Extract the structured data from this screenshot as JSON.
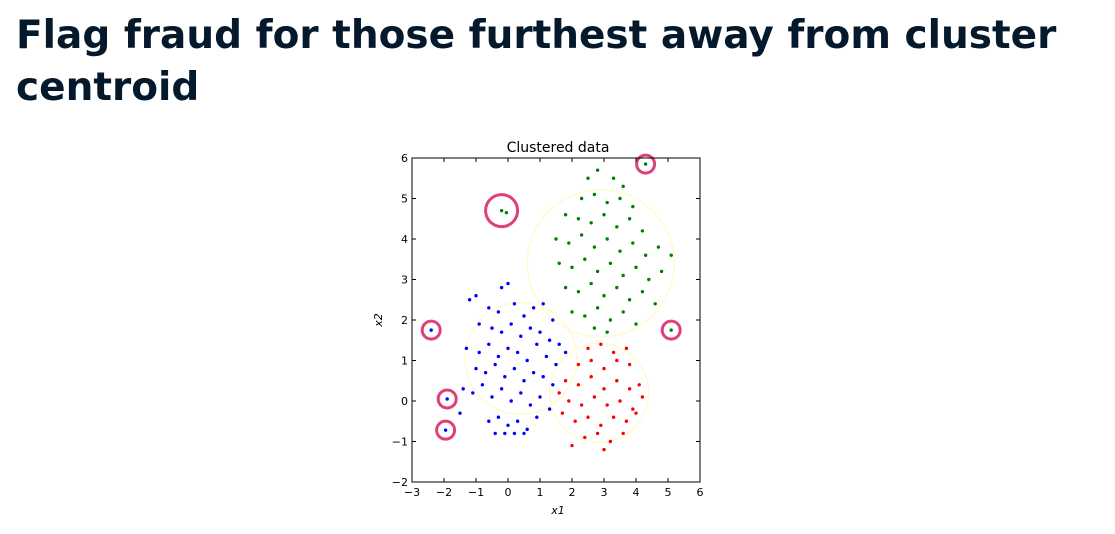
{
  "slide": {
    "title": "Flag fraud for those furthest away from cluster centroid"
  },
  "chart_data": {
    "type": "scatter",
    "title": "Clustered data",
    "xlabel": "x1",
    "ylabel": "x2",
    "xlim": [
      -3,
      6
    ],
    "ylim": [
      -2,
      6
    ],
    "xticks": [
      "−3",
      "−2",
      "−1",
      "0",
      "1",
      "2",
      "3",
      "4",
      "5",
      "6"
    ],
    "yticks": [
      "−2",
      "−1",
      "0",
      "1",
      "2",
      "3",
      "4",
      "5",
      "6"
    ],
    "grid": false,
    "colors": {
      "blue": "#0000ff",
      "green": "#008000",
      "red": "#ff0000",
      "cluster_boundary": "#fffacd",
      "outlier_highlight": "#e0407a"
    },
    "series": [
      {
        "color": "blue",
        "points": [
          [
            -1.2,
            2.5
          ],
          [
            -1.0,
            2.6
          ],
          [
            -0.6,
            2.3
          ],
          [
            -0.3,
            2.2
          ],
          [
            0.2,
            2.4
          ],
          [
            0.5,
            2.1
          ],
          [
            0.8,
            2.3
          ],
          [
            1.1,
            2.4
          ],
          [
            1.4,
            2.0
          ],
          [
            -0.9,
            1.9
          ],
          [
            -0.5,
            1.8
          ],
          [
            -0.2,
            1.7
          ],
          [
            0.1,
            1.9
          ],
          [
            0.4,
            1.6
          ],
          [
            0.7,
            1.8
          ],
          [
            1.0,
            1.7
          ],
          [
            1.3,
            1.5
          ],
          [
            1.6,
            1.4
          ],
          [
            -1.3,
            1.3
          ],
          [
            -0.9,
            1.2
          ],
          [
            -0.6,
            1.4
          ],
          [
            -0.3,
            1.1
          ],
          [
            0.0,
            1.3
          ],
          [
            0.3,
            1.2
          ],
          [
            0.6,
            1.0
          ],
          [
            0.9,
            1.4
          ],
          [
            1.2,
            1.1
          ],
          [
            1.5,
            0.9
          ],
          [
            1.8,
            1.2
          ],
          [
            -1.0,
            0.8
          ],
          [
            -0.7,
            0.7
          ],
          [
            -0.4,
            0.9
          ],
          [
            -0.1,
            0.6
          ],
          [
            0.2,
            0.8
          ],
          [
            0.5,
            0.5
          ],
          [
            0.8,
            0.7
          ],
          [
            1.1,
            0.6
          ],
          [
            1.4,
            0.4
          ],
          [
            -1.4,
            0.3
          ],
          [
            -1.1,
            0.2
          ],
          [
            -0.8,
            0.4
          ],
          [
            -0.5,
            0.1
          ],
          [
            -0.2,
            0.3
          ],
          [
            0.1,
            0.0
          ],
          [
            0.4,
            0.2
          ],
          [
            0.7,
            -0.1
          ],
          [
            1.0,
            0.1
          ],
          [
            1.3,
            -0.2
          ],
          [
            -0.6,
            -0.5
          ],
          [
            -0.3,
            -0.4
          ],
          [
            0.0,
            -0.6
          ],
          [
            0.3,
            -0.5
          ],
          [
            0.6,
            -0.7
          ],
          [
            0.9,
            -0.4
          ],
          [
            -0.4,
            -0.8
          ],
          [
            -0.1,
            -0.8
          ],
          [
            0.2,
            -0.8
          ],
          [
            0.5,
            -0.8
          ],
          [
            -1.5,
            -0.3
          ],
          [
            -0.2,
            2.8
          ],
          [
            0.0,
            2.9
          ],
          [
            -1.9,
            0.05
          ],
          [
            -1.95,
            -0.72
          ],
          [
            -2.4,
            1.75
          ]
        ]
      },
      {
        "color": "green",
        "points": [
          [
            2.5,
            5.5
          ],
          [
            2.8,
            5.7
          ],
          [
            3.3,
            5.5
          ],
          [
            3.6,
            5.3
          ],
          [
            2.3,
            5.0
          ],
          [
            2.7,
            5.1
          ],
          [
            3.1,
            4.9
          ],
          [
            3.5,
            5.0
          ],
          [
            3.9,
            4.8
          ],
          [
            1.8,
            4.6
          ],
          [
            2.2,
            4.5
          ],
          [
            2.6,
            4.4
          ],
          [
            3.0,
            4.6
          ],
          [
            3.4,
            4.3
          ],
          [
            3.8,
            4.5
          ],
          [
            4.2,
            4.2
          ],
          [
            1.5,
            4.0
          ],
          [
            1.9,
            3.9
          ],
          [
            2.3,
            4.1
          ],
          [
            2.7,
            3.8
          ],
          [
            3.1,
            4.0
          ],
          [
            3.5,
            3.7
          ],
          [
            3.9,
            3.9
          ],
          [
            4.3,
            3.6
          ],
          [
            4.7,
            3.8
          ],
          [
            1.6,
            3.4
          ],
          [
            2.0,
            3.3
          ],
          [
            2.4,
            3.5
          ],
          [
            2.8,
            3.2
          ],
          [
            3.2,
            3.4
          ],
          [
            3.6,
            3.1
          ],
          [
            4.0,
            3.3
          ],
          [
            4.4,
            3.0
          ],
          [
            4.8,
            3.2
          ],
          [
            1.8,
            2.8
          ],
          [
            2.2,
            2.7
          ],
          [
            2.6,
            2.9
          ],
          [
            3.0,
            2.6
          ],
          [
            3.4,
            2.8
          ],
          [
            3.8,
            2.5
          ],
          [
            4.2,
            2.7
          ],
          [
            4.6,
            2.4
          ],
          [
            2.0,
            2.2
          ],
          [
            2.4,
            2.1
          ],
          [
            2.8,
            2.3
          ],
          [
            3.2,
            2.0
          ],
          [
            3.6,
            2.2
          ],
          [
            4.0,
            1.9
          ],
          [
            2.7,
            1.8
          ],
          [
            3.1,
            1.7
          ],
          [
            4.3,
            5.85
          ],
          [
            -0.2,
            4.7
          ],
          [
            -0.05,
            4.65
          ],
          [
            5.1,
            1.75
          ],
          [
            5.1,
            3.6
          ]
        ]
      },
      {
        "color": "red",
        "points": [
          [
            2.5,
            1.3
          ],
          [
            2.9,
            1.4
          ],
          [
            3.3,
            1.2
          ],
          [
            3.7,
            1.3
          ],
          [
            2.2,
            0.9
          ],
          [
            2.6,
            1.0
          ],
          [
            3.0,
            0.8
          ],
          [
            3.4,
            1.0
          ],
          [
            3.8,
            0.9
          ],
          [
            1.8,
            0.5
          ],
          [
            2.2,
            0.4
          ],
          [
            2.6,
            0.6
          ],
          [
            3.0,
            0.3
          ],
          [
            3.4,
            0.5
          ],
          [
            3.8,
            0.3
          ],
          [
            4.1,
            0.4
          ],
          [
            1.9,
            0.0
          ],
          [
            2.3,
            -0.1
          ],
          [
            2.7,
            0.1
          ],
          [
            3.1,
            -0.1
          ],
          [
            3.5,
            0.0
          ],
          [
            3.9,
            -0.2
          ],
          [
            4.2,
            0.1
          ],
          [
            2.1,
            -0.5
          ],
          [
            2.5,
            -0.4
          ],
          [
            2.9,
            -0.6
          ],
          [
            3.3,
            -0.4
          ],
          [
            3.7,
            -0.5
          ],
          [
            4.0,
            -0.3
          ],
          [
            2.4,
            -0.9
          ],
          [
            2.8,
            -0.8
          ],
          [
            3.2,
            -1.0
          ],
          [
            3.6,
            -0.8
          ],
          [
            2.0,
            -1.1
          ],
          [
            1.6,
            0.2
          ],
          [
            1.7,
            -0.3
          ],
          [
            3.0,
            -1.2
          ]
        ]
      }
    ],
    "cluster_circles": [
      {
        "center": [
          0.4,
          1.05
        ],
        "radius": 1.75
      },
      {
        "center": [
          2.9,
          3.4
        ],
        "radius": 2.3
      },
      {
        "center": [
          2.85,
          0.2
        ],
        "radius": 1.55
      }
    ],
    "outliers": [
      [
        4.3,
        5.85
      ],
      [
        -0.2,
        4.7
      ],
      [
        -2.4,
        1.75
      ],
      [
        5.1,
        1.75
      ],
      [
        -1.9,
        0.05
      ],
      [
        -1.95,
        -0.72
      ]
    ]
  }
}
